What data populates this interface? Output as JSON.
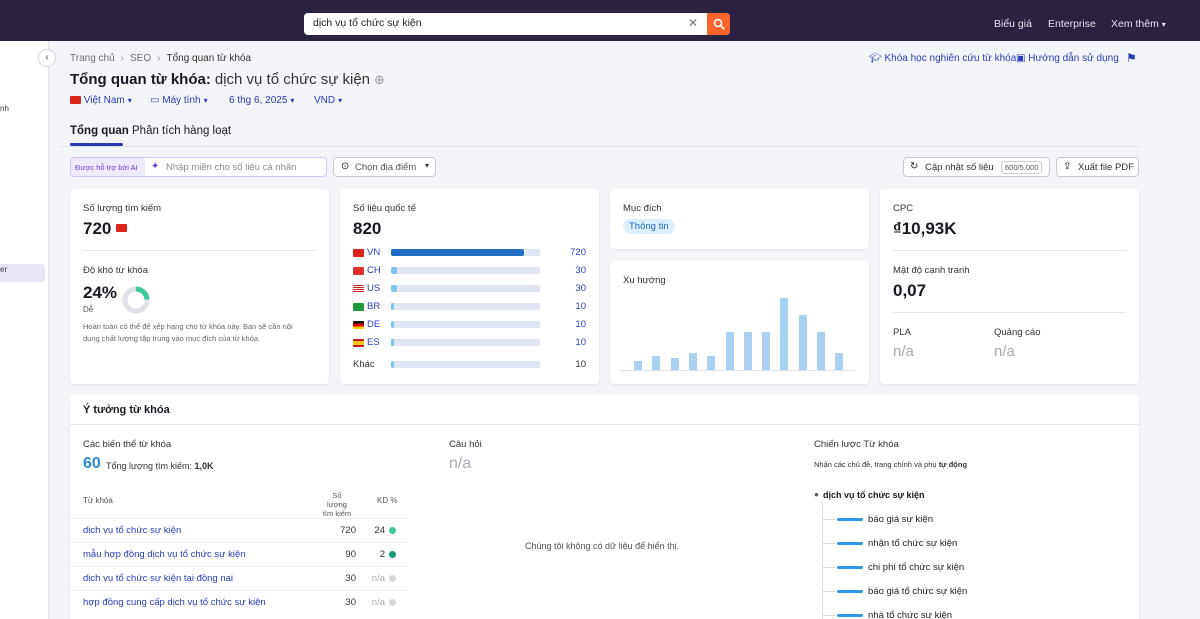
{
  "topbar": {
    "search_value": "dịch vụ tổ chức sự kiện",
    "links": [
      "Biểu giá",
      "Enterprise",
      "Xem thêm"
    ]
  },
  "sidebar": {
    "fragments": [
      "nh",
      "er"
    ]
  },
  "breadcrumb": [
    "Trang chủ",
    "SEO",
    "Tổng quan từ khóa"
  ],
  "title": {
    "label": "Tổng quan từ khóa:",
    "keyword": "dịch vụ tổ chức sự kiện"
  },
  "filters": {
    "country": "Việt Nam",
    "device": "Máy tính",
    "date": "6 thg 6, 2025",
    "currency": "VND"
  },
  "header_links": {
    "course": "Khóa học nghiên cứu từ khóa",
    "guide": "Hướng dẫn sử dụng"
  },
  "tabs": [
    "Tổng quan",
    "Phân tích hàng loạt"
  ],
  "controls": {
    "ai_badge": "Được hỗ trợ bởi AI",
    "ai_placeholder": "Nhập miền cho số liệu cá nhân",
    "location": "Chọn địa điểm",
    "update": "Cập nhật số liệu",
    "update_count": "600/5.000",
    "export": "Xuất file PDF"
  },
  "volume_card": {
    "label": "Số lượng tìm kiếm",
    "value": "720",
    "kd_label": "Độ khó từ khóa",
    "kd_value": "24%",
    "kd_percent": 24,
    "kd_level": "Dễ",
    "kd_desc_1": "Hoàn toàn có thể để xếp hạng cho từ khóa này. Bạn sẽ cần nội",
    "kd_desc_2": "dung chất lượng tập trung vào mục đích của từ khóa."
  },
  "global_card": {
    "label": "Số liệu quốc tế",
    "value": "820",
    "countries": [
      {
        "code": "VN",
        "value": "720",
        "share": 0.89
      },
      {
        "code": "CH",
        "value": "30",
        "share": 0.04
      },
      {
        "code": "US",
        "value": "30",
        "share": 0.04
      },
      {
        "code": "BR",
        "value": "10",
        "share": 0.015
      },
      {
        "code": "DE",
        "value": "10",
        "share": 0.015
      },
      {
        "code": "ES",
        "value": "10",
        "share": 0.015
      }
    ],
    "other_label": "Khác",
    "other_value": "10",
    "other_share": 0.015
  },
  "intent_card": {
    "label": "Mục đích",
    "badge": "Thông tin"
  },
  "trend_card": {
    "label": "Xu hướng",
    "relative_values": [
      0.12,
      0.2,
      0.16,
      0.23,
      0.2,
      0.53,
      0.53,
      0.53,
      1.0,
      0.76,
      0.53,
      0.23
    ]
  },
  "cpc_card": {
    "cpc_label": "CPC",
    "cpc_value": "₫10,93K",
    "comp_label": "Mật độ cạnh tranh",
    "comp_value": "0,07",
    "pla_label": "PLA",
    "pla_value": "n/a",
    "ads_label": "Quảng cáo",
    "ads_value": "n/a"
  },
  "ideas": {
    "title": "Ý tưởng từ khóa",
    "variations_label": "Các biến thể từ khóa",
    "variations_count": "60",
    "total_label": "Tổng lượng tìm kiếm:",
    "total_value": "1,0K",
    "col_keyword": "Từ khóa",
    "col_volume_1": "Số lượng",
    "col_volume_2": "tìm kiếm",
    "col_kd": "KD %",
    "rows": [
      {
        "keyword": "dịch vụ tổ chức sự kiện",
        "volume": "720",
        "kd": "24",
        "dot": "#3ec99b"
      },
      {
        "keyword": "mẫu hợp đồng dịch vụ tổ chức sự kiện",
        "volume": "90",
        "kd": "2",
        "dot": "#169a78"
      },
      {
        "keyword": "dịch vụ tổ chức sự kiện tại đồng nai",
        "volume": "30",
        "kd": "n/a",
        "dot": "#d7d8dd"
      },
      {
        "keyword": "hợp đồng cung cấp dịch vụ tổ chức sự kiện",
        "volume": "30",
        "kd": "n/a",
        "dot": "#d7d8dd"
      }
    ],
    "questions_label": "Câu hỏi",
    "questions_value": "n/a",
    "no_data": "Chúng tôi không có dữ liệu để hiển thị.",
    "strategy_label": "Chiến lược Từ khóa",
    "strategy_desc": "Nhận các chủ đề, trang chính và phụ",
    "strategy_desc_bold": "tự động",
    "strategy_root": "dịch vụ tổ chức sự kiện",
    "strategy_items": [
      "báo giá sự kiện",
      "nhận tổ chức sự kiện",
      "chi phí tổ chức sự kiện",
      "báo giá tổ chức sự kiện",
      "nhà tổ chức sự kiện"
    ]
  },
  "colors": {
    "accent": "#2a3bb8",
    "bar": "#1e6ec8",
    "bar_light": "#7ec4ef",
    "topbar": "#2b2141",
    "search_button": "#ff642d",
    "trend": "#aad1f2"
  }
}
